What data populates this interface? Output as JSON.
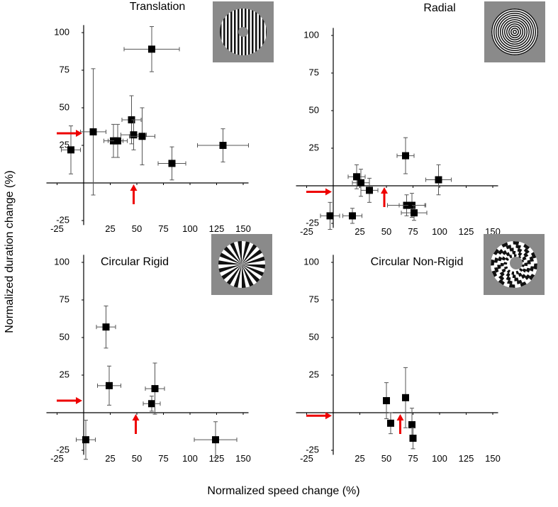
{
  "xlabel": "Normalized speed change (%)",
  "ylabel": "Normalized duration change (%)",
  "chart_data": [
    {
      "type": "scatter",
      "title": "Translation",
      "x": [
        -12,
        9,
        28,
        32,
        45,
        47,
        55,
        64,
        83,
        131
      ],
      "y": [
        22,
        34,
        28,
        28,
        42,
        32,
        31,
        89,
        13,
        25
      ],
      "xerr": [
        9,
        12,
        9,
        9,
        9,
        12,
        12,
        26,
        13,
        24
      ],
      "yerr": [
        16,
        42,
        11,
        11,
        16,
        10,
        19,
        15,
        11,
        11
      ],
      "threshold_x": 47,
      "threshold_y": 33,
      "xlim": [
        -35,
        155
      ],
      "ylim": [
        -28,
        105
      ],
      "xticks": [
        -25,
        25,
        50,
        75,
        100,
        125,
        150
      ],
      "yticks": [
        -25,
        25,
        50,
        75,
        100
      ]
    },
    {
      "type": "scatter",
      "title": "Radial",
      "x": [
        -3,
        18,
        22,
        26,
        34,
        68,
        69,
        74,
        76,
        99
      ],
      "y": [
        -20,
        -20,
        6,
        2,
        -3,
        20,
        -13,
        -13,
        -18,
        4
      ],
      "xerr": [
        9,
        9,
        8,
        8,
        8,
        8,
        18,
        12,
        12,
        12
      ],
      "yerr": [
        9,
        5,
        8,
        9,
        8,
        12,
        7,
        8,
        5,
        10
      ],
      "threshold_x": 48,
      "threshold_y": -4,
      "xlim": [
        -35,
        155
      ],
      "ylim": [
        -28,
        105
      ],
      "xticks": [
        -25,
        25,
        50,
        75,
        100,
        125,
        150
      ],
      "yticks": [
        -25,
        25,
        50,
        75,
        100
      ]
    },
    {
      "type": "scatter",
      "title": "Circular Rigid",
      "x": [
        2,
        21,
        24,
        64,
        67,
        124
      ],
      "y": [
        -18,
        57,
        18,
        6,
        16,
        -18
      ],
      "xerr": [
        9,
        9,
        11,
        8,
        9,
        20
      ],
      "yerr": [
        13,
        14,
        13,
        5,
        17,
        12
      ],
      "threshold_x": 49,
      "threshold_y": 8,
      "xlim": [
        -35,
        155
      ],
      "ylim": [
        -28,
        105
      ],
      "xticks": [
        -25,
        25,
        50,
        75,
        100,
        125,
        150
      ],
      "yticks": [
        -25,
        25,
        50,
        75,
        100
      ]
    },
    {
      "type": "scatter",
      "title": "Circular Non-Rigid",
      "x": [
        50,
        54,
        68,
        74,
        75
      ],
      "y": [
        8,
        -7,
        10,
        -8,
        -17
      ],
      "xerr": [
        2,
        2,
        2,
        2,
        2
      ],
      "yerr": [
        12,
        7,
        20,
        11,
        7
      ],
      "threshold_x": 63,
      "threshold_y": -2,
      "xlim": [
        -35,
        155
      ],
      "ylim": [
        -28,
        105
      ],
      "xticks": [
        -25,
        25,
        50,
        75,
        100,
        125,
        150
      ],
      "yticks": [
        -25,
        25,
        50,
        75,
        100
      ]
    }
  ]
}
